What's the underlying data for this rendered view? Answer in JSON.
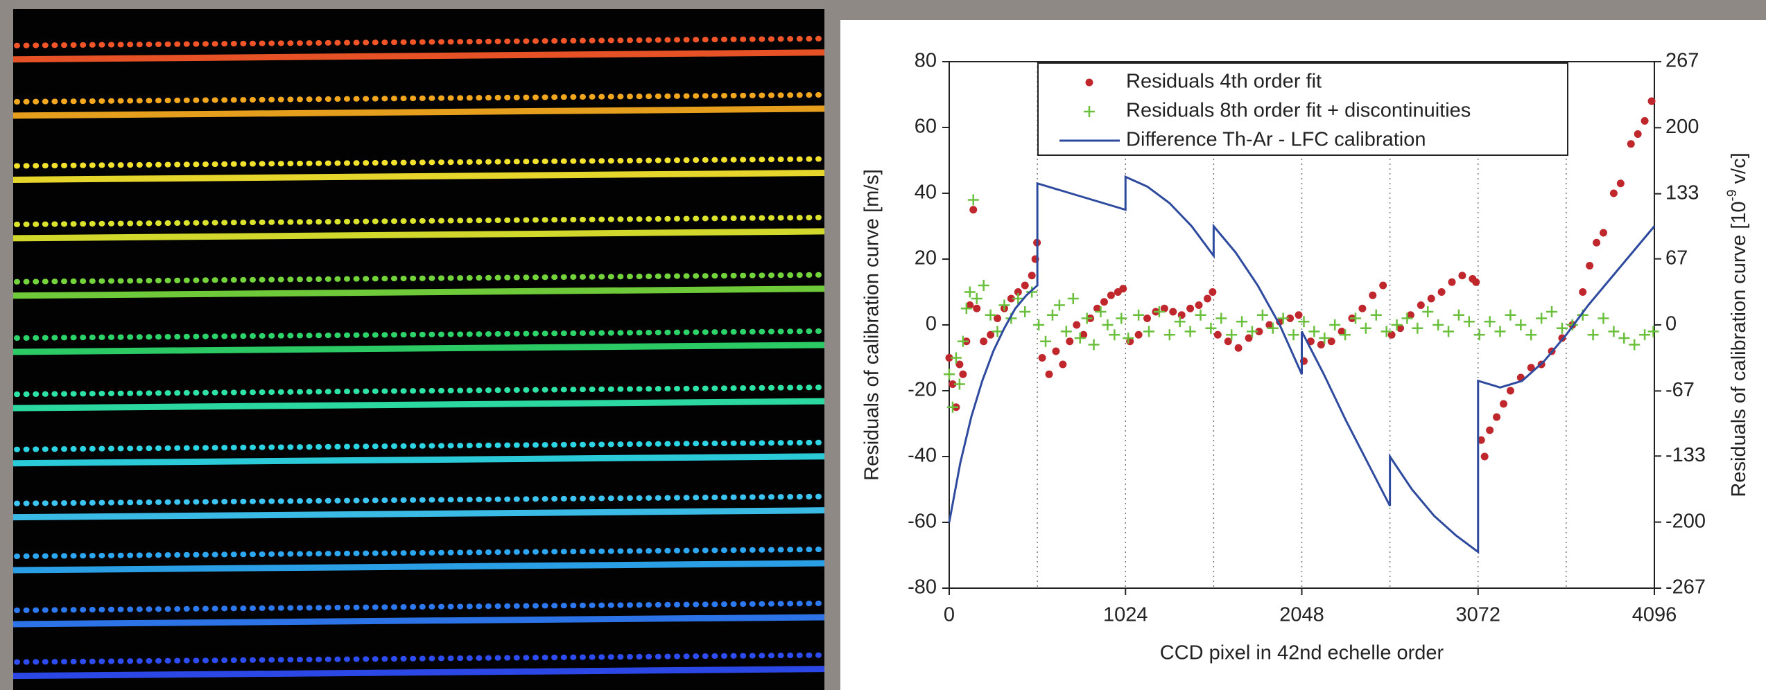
{
  "chart_data": {
    "type": "scatter",
    "x_label": "CCD pixel in 42nd echelle order",
    "y_label": "Residuals of calibration curve [m/s]",
    "y2_label": [
      "Residuals of calibration curve [10",
      "-9",
      " v/c]"
    ],
    "xlim": [
      0,
      4096
    ],
    "xticks": [
      0,
      1024,
      2048,
      3072,
      4096
    ],
    "ylim": [
      -80,
      80
    ],
    "yticks": [
      -80,
      -60,
      -40,
      -20,
      0,
      20,
      40,
      60,
      80
    ],
    "y2lim": [
      -267,
      267
    ],
    "y2ticks": [
      -267,
      -200,
      -133,
      -67,
      0,
      67,
      133,
      200,
      267
    ],
    "vlines": [
      512,
      1024,
      1536,
      2048,
      2560,
      3072,
      3584
    ],
    "legend": "top",
    "series": [
      {
        "name": "Residuals 4th order fit",
        "type": "scatter",
        "marker": "dot",
        "color": "#c0272d",
        "x": [
          0,
          20,
          40,
          60,
          80,
          100,
          120,
          140,
          160,
          200,
          240,
          280,
          320,
          360,
          400,
          440,
          480,
          500,
          510,
          540,
          580,
          620,
          660,
          700,
          740,
          780,
          820,
          860,
          900,
          940,
          980,
          1010,
          1050,
          1100,
          1150,
          1200,
          1250,
          1300,
          1350,
          1400,
          1450,
          1500,
          1530,
          1560,
          1620,
          1680,
          1740,
          1800,
          1860,
          1920,
          1980,
          2030,
          2060,
          2100,
          2160,
          2220,
          2280,
          2340,
          2400,
          2460,
          2520,
          2570,
          2620,
          2680,
          2740,
          2800,
          2860,
          2920,
          2980,
          3040,
          3060,
          3090,
          3110,
          3140,
          3180,
          3220,
          3260,
          3320,
          3380,
          3440,
          3500,
          3560,
          3620,
          3680,
          3720,
          3760,
          3800,
          3860,
          3900,
          3960,
          4000,
          4040,
          4080
        ],
        "values": [
          -10,
          -18,
          -25,
          -12,
          -15,
          -5,
          6,
          35,
          5,
          -5,
          -3,
          2,
          5,
          8,
          10,
          12,
          15,
          20,
          25,
          -10,
          -15,
          -8,
          -12,
          -5,
          0,
          -3,
          2,
          5,
          7,
          9,
          10,
          11,
          -5,
          -3,
          2,
          4,
          5,
          4,
          3,
          5,
          6,
          8,
          10,
          -3,
          -5,
          -7,
          -4,
          -2,
          0,
          1,
          2,
          3,
          -11,
          -5,
          -6,
          -5,
          -2,
          2,
          5,
          9,
          12,
          -3,
          -1,
          3,
          6,
          8,
          10,
          13,
          15,
          14,
          13,
          -35,
          -40,
          -32,
          -28,
          -24,
          -20,
          -16,
          -13,
          -12,
          -8,
          -4,
          0,
          10,
          18,
          25,
          28,
          40,
          43,
          55,
          58,
          62,
          68
        ]
      },
      {
        "name": "Residuals 8th order fit + discontinuities",
        "type": "scatter",
        "marker": "plus",
        "color": "#6abf3c",
        "x": [
          0,
          20,
          40,
          60,
          80,
          100,
          120,
          140,
          160,
          200,
          240,
          280,
          320,
          360,
          400,
          440,
          480,
          520,
          560,
          600,
          640,
          680,
          720,
          760,
          800,
          840,
          880,
          920,
          960,
          1000,
          1040,
          1100,
          1160,
          1220,
          1280,
          1340,
          1400,
          1460,
          1520,
          1580,
          1640,
          1700,
          1760,
          1820,
          1880,
          1940,
          2000,
          2060,
          2120,
          2180,
          2240,
          2300,
          2360,
          2420,
          2480,
          2540,
          2600,
          2660,
          2720,
          2780,
          2840,
          2900,
          2960,
          3020,
          3080,
          3140,
          3200,
          3260,
          3320,
          3380,
          3440,
          3500,
          3560,
          3620,
          3680,
          3740,
          3800,
          3860,
          3920,
          3980,
          4040,
          4090
        ],
        "values": [
          -15,
          -25,
          -10,
          -18,
          -5,
          5,
          10,
          38,
          8,
          12,
          3,
          -2,
          6,
          2,
          8,
          4,
          10,
          0,
          -5,
          3,
          6,
          -2,
          8,
          -4,
          2,
          -6,
          4,
          0,
          -3,
          2,
          -4,
          3,
          -2,
          4,
          -3,
          1,
          -2,
          3,
          -1,
          2,
          -3,
          1,
          -2,
          3,
          -1,
          2,
          -3,
          1,
          -2,
          -4,
          0,
          -3,
          2,
          -1,
          3,
          -2,
          0,
          2,
          -1,
          4,
          0,
          -2,
          3,
          1,
          -3,
          1,
          -2,
          3,
          0,
          -3,
          2,
          4,
          -1,
          0,
          3,
          -3,
          2,
          -2,
          -4,
          -6,
          -3,
          -2
        ]
      },
      {
        "name": "Difference Th-Ar - LFC calibration",
        "type": "line",
        "color": "#2e4a9e",
        "x": [
          0,
          64,
          128,
          192,
          256,
          320,
          384,
          448,
          512,
          512,
          640,
          768,
          896,
          1024,
          1024,
          1152,
          1280,
          1408,
          1536,
          1536,
          1664,
          1792,
          1920,
          2048,
          2048,
          2176,
          2304,
          2432,
          2560,
          2560,
          2688,
          2816,
          2944,
          3072,
          3072,
          3200,
          3328,
          3456,
          3584,
          3712,
          3840,
          3968,
          4096
        ],
        "values": [
          -60,
          -42,
          -28,
          -17,
          -8,
          -1,
          5,
          9,
          12,
          43,
          41,
          39,
          37,
          35,
          45,
          42,
          37,
          30,
          21,
          30,
          22,
          12,
          0,
          -15,
          -2,
          -15,
          -29,
          -42,
          -55,
          -40,
          -50,
          -58,
          -64,
          -69,
          -17,
          -19,
          -17,
          -11,
          -3,
          6,
          14,
          22,
          30
        ]
      }
    ]
  }
}
